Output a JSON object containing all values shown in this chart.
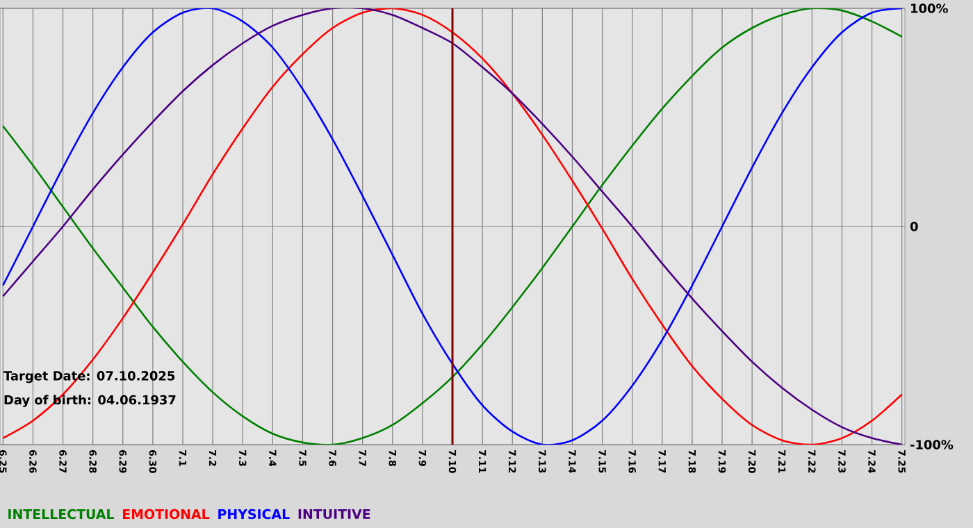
{
  "chart_data": {
    "type": "line",
    "categories": [
      "6.25",
      "6.26",
      "6.27",
      "6.28",
      "6.29",
      "6.30",
      "7.1",
      "7.2",
      "7.3",
      "7.4",
      "7.5",
      "7.6",
      "7.7",
      "7.8",
      "7.9",
      "7.10",
      "7.11",
      "7.12",
      "7.13",
      "7.14",
      "7.15",
      "7.16",
      "7.17",
      "7.18",
      "7.19",
      "7.20",
      "7.21",
      "7.22",
      "7.23",
      "7.24",
      "7.25"
    ],
    "series": [
      {
        "name": "INTELLECTUAL",
        "color": "#008000",
        "values": [
          46,
          28,
          9,
          -10,
          -28,
          -46,
          -62,
          -76,
          -87,
          -95,
          -99,
          -100,
          -97,
          -91,
          -81,
          -69,
          -54,
          -37,
          -19,
          0,
          19,
          37,
          54,
          69,
          82,
          91,
          97,
          100,
          99,
          94,
          87
        ]
      },
      {
        "name": "EMOTIONAL",
        "color": "#ff0000",
        "values": [
          -97,
          -89,
          -77,
          -61,
          -42,
          -21,
          1,
          24,
          45,
          64,
          79,
          91,
          98,
          100,
          97,
          89,
          77,
          61,
          42,
          21,
          -1,
          -24,
          -45,
          -64,
          -79,
          -91,
          -98,
          -100,
          -97,
          -89,
          -77
        ]
      },
      {
        "name": "PHYSICAL",
        "color": "#0000ff",
        "values": [
          -27,
          0,
          27,
          52,
          73,
          89,
          98,
          100,
          94,
          82,
          63,
          40,
          14,
          -13,
          -40,
          -63,
          -82,
          -94,
          -100,
          -98,
          -89,
          -73,
          -52,
          -27,
          0,
          27,
          52,
          73,
          89,
          98,
          100
        ]
      },
      {
        "name": "INTUITIVE",
        "color": "#4b0082",
        "values": [
          -32,
          -16,
          0,
          17,
          33,
          48,
          62,
          74,
          84,
          92,
          97,
          100,
          100,
          97,
          91,
          84,
          73,
          61,
          47,
          32,
          16,
          0,
          -17,
          -33,
          -48,
          -62,
          -74,
          -84,
          -92,
          -97,
          -100
        ]
      }
    ],
    "ylim": [
      -100,
      100
    ],
    "yticks": [
      {
        "value": -100,
        "label": "-100%"
      },
      0,
      {
        "value": 100,
        "label": "100%"
      }
    ],
    "grid": true,
    "legend": "bottom left",
    "line_style": "solid",
    "ref_lines": [
      {
        "axis": "x",
        "value": "7.10",
        "color": "#800000"
      }
    ],
    "annotations": [
      "Target Date: 07.10.2025",
      "Day of birth: 04.06.1937"
    ]
  }
}
